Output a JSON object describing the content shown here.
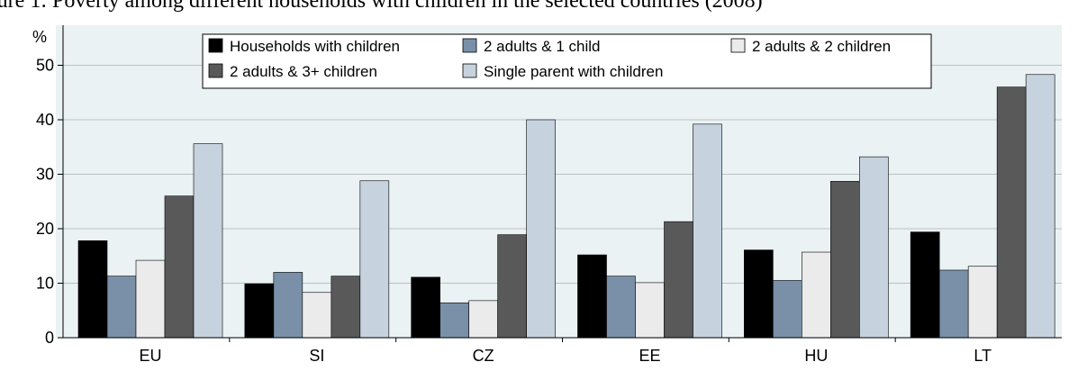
{
  "caption": "igure 1: Poverty among different households with children in the selected countries (2008)",
  "chart_data": {
    "type": "bar",
    "title": "igure 1: Poverty among different households with children in the selected countries (2008)",
    "ylabel": "%",
    "xlabel": "",
    "ylim": [
      0,
      55
    ],
    "yticks": [
      0,
      10,
      20,
      30,
      40,
      50
    ],
    "grid": true,
    "legend_position": "top",
    "categories": [
      "EU",
      "SI",
      "CZ",
      "EE",
      "HU",
      "LT"
    ],
    "series": [
      {
        "name": "Households with children",
        "color": "#000000",
        "values": [
          17.8,
          9.9,
          11.1,
          15.2,
          16.1,
          19.4
        ]
      },
      {
        "name": "2 adults & 1 child",
        "color": "#7990a8",
        "values": [
          11.3,
          12.0,
          6.4,
          11.3,
          10.5,
          12.4
        ]
      },
      {
        "name": "2 adults & 2 children",
        "color": "#ebebeb",
        "values": [
          14.2,
          8.3,
          6.8,
          10.1,
          15.7,
          13.1
        ]
      },
      {
        "name": "2 adults & 3+ children",
        "color": "#595959",
        "values": [
          26.0,
          11.3,
          18.9,
          21.3,
          28.7,
          46.0
        ]
      },
      {
        "name": "Single parent with children",
        "color": "#c6d2de",
        "values": [
          35.6,
          28.8,
          40.0,
          39.2,
          33.2,
          48.3
        ]
      }
    ]
  }
}
